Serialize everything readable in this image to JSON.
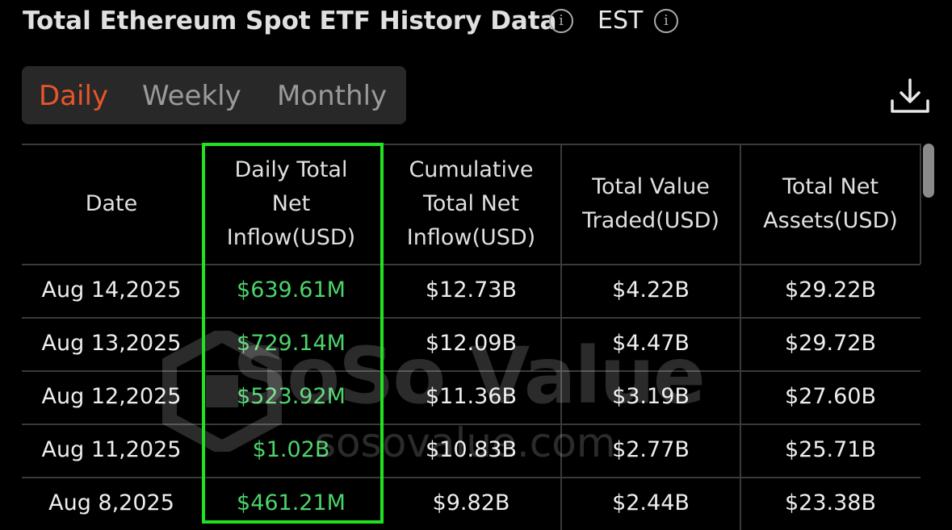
{
  "header": {
    "title": "Total Ethereum Spot ETF History Data",
    "timezone": "EST"
  },
  "tabs": {
    "items": [
      "Daily",
      "Weekly",
      "Monthly"
    ],
    "active": "Daily"
  },
  "table": {
    "columns": [
      "Date",
      "Daily Total Net Inflow(USD)",
      "Cumulative Total Net Inflow(USD)",
      "Total Value Traded(USD)",
      "Total Net Assets(USD)"
    ],
    "rows": [
      [
        "Aug 14,2025",
        "$639.61M",
        "$12.73B",
        "$4.22B",
        "$29.22B"
      ],
      [
        "Aug 13,2025",
        "$729.14M",
        "$12.09B",
        "$4.47B",
        "$29.72B"
      ],
      [
        "Aug 12,2025",
        "$523.92M",
        "$11.36B",
        "$3.19B",
        "$27.60B"
      ],
      [
        "Aug 11,2025",
        "$1.02B",
        "$10.83B",
        "$2.77B",
        "$25.71B"
      ],
      [
        "Aug 8,2025",
        "$461.21M",
        "$9.82B",
        "$2.44B",
        "$23.38B"
      ]
    ]
  },
  "watermark": {
    "brand": "SoSo Value",
    "url": "sosovalue.com"
  }
}
